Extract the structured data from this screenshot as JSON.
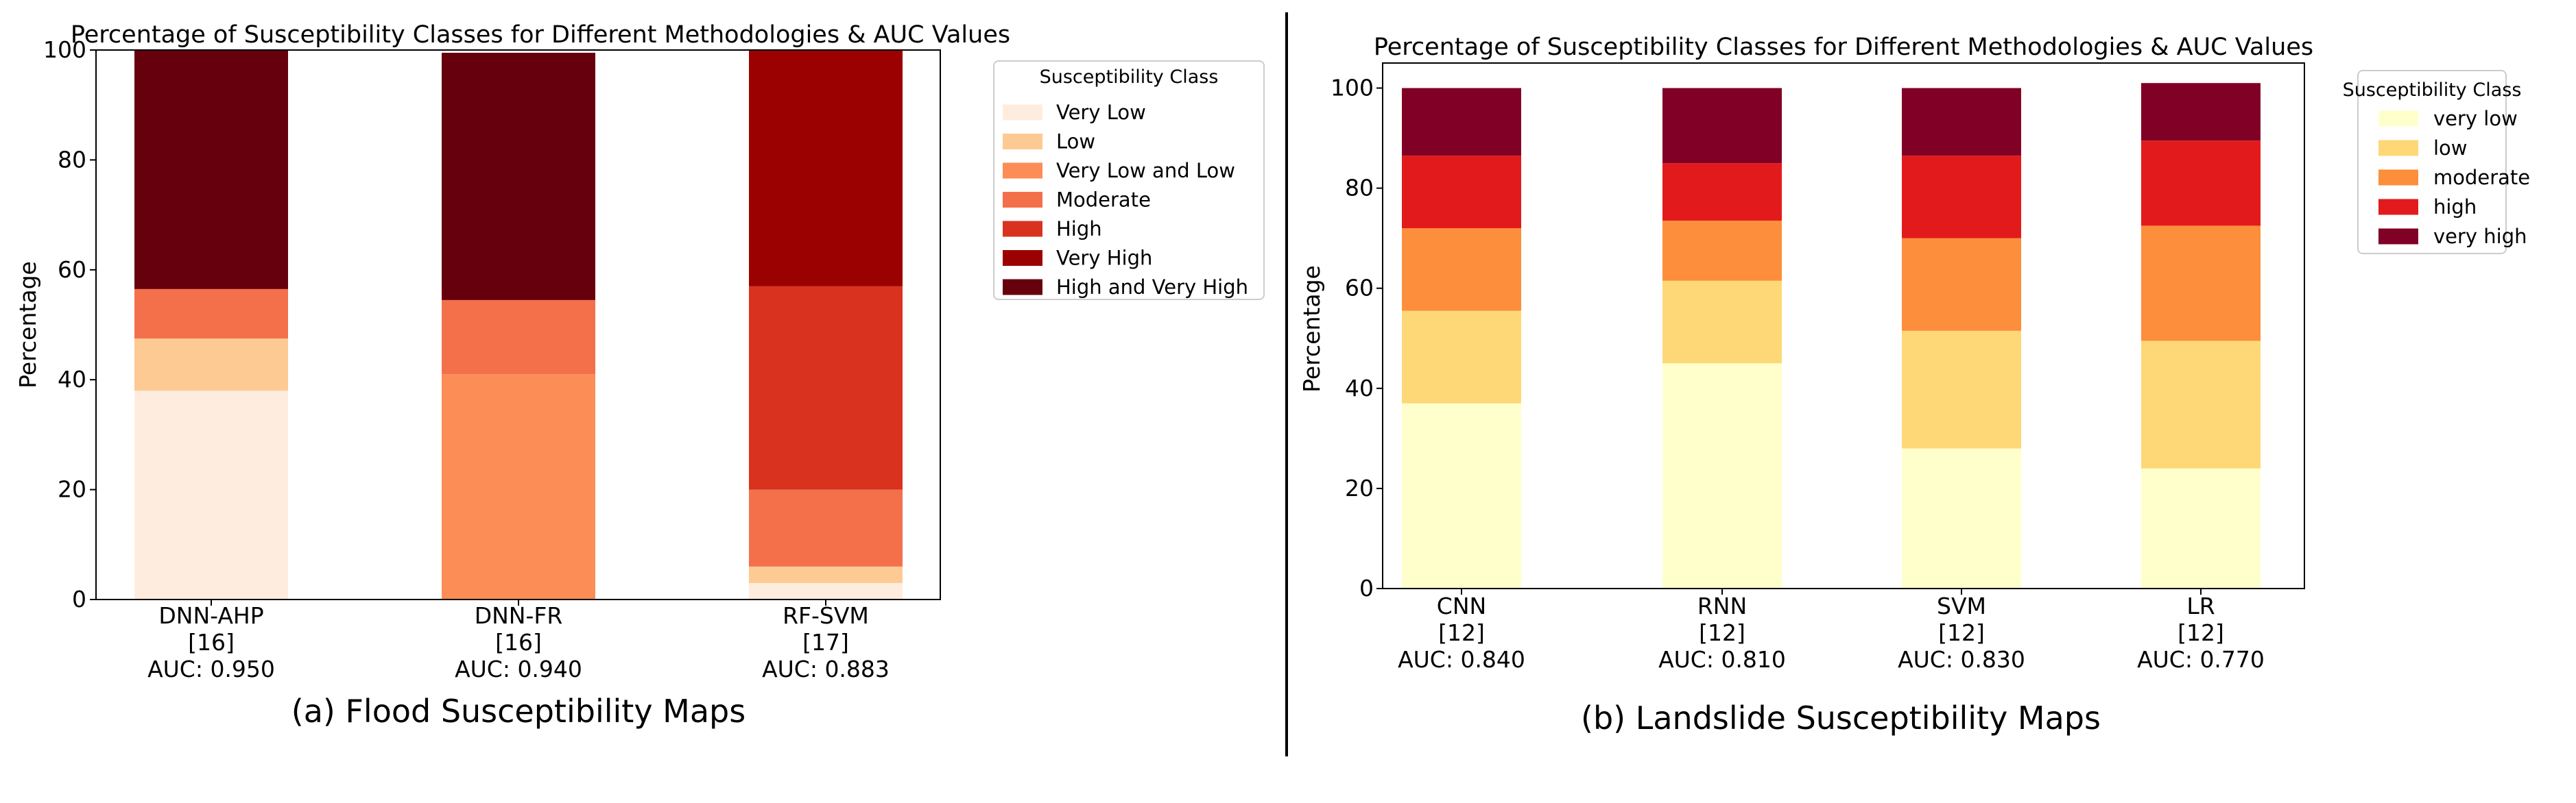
{
  "divider_color": "#000000",
  "panels": [
    {
      "caption": "(a) Flood Susceptibility Maps",
      "chart_data": {
        "type": "bar",
        "stacked": true,
        "title": "Percentage of Susceptibility Classes for Different Methodologies & AUC Values",
        "xlabel": "",
        "ylabel": "Percentage",
        "ylim": [
          0,
          100
        ],
        "yticks": [
          0,
          20,
          40,
          60,
          80,
          100
        ],
        "categories": [
          {
            "name": "DNN-AHP",
            "ref": "[16]",
            "auc": "AUC: 0.950"
          },
          {
            "name": "DNN-FR",
            "ref": "[16]",
            "auc": "AUC: 0.940"
          },
          {
            "name": "RF-SVM",
            "ref": "[17]",
            "auc": "AUC: 0.883"
          }
        ],
        "legend_title": "Susceptibility Class",
        "legend_position": "right",
        "series": [
          {
            "name": "Very Low",
            "color": "#feedde",
            "values": [
              38,
              0,
              3
            ]
          },
          {
            "name": "Low",
            "color": "#fdca93",
            "values": [
              9.5,
              0,
              3
            ]
          },
          {
            "name": "Very Low and Low",
            "color": "#fd8d56",
            "values": [
              0,
              41,
              0
            ]
          },
          {
            "name": "Moderate",
            "color": "#f3704b",
            "values": [
              9,
              13.5,
              14
            ]
          },
          {
            "name": "High",
            "color": "#d9321f",
            "values": [
              0,
              0,
              37
            ]
          },
          {
            "name": "Very High",
            "color": "#9b0101",
            "values": [
              0,
              0,
              43
            ]
          },
          {
            "name": "High and Very High",
            "color": "#67000d",
            "values": [
              43.5,
              45,
              0
            ]
          }
        ]
      }
    },
    {
      "caption": "(b) Landslide Susceptibility Maps",
      "chart_data": {
        "type": "bar",
        "stacked": true,
        "title": "Percentage of Susceptibility Classes for Different Methodologies & AUC Values",
        "xlabel": "",
        "ylabel": "Percentage",
        "ylim": [
          0,
          105
        ],
        "yticks": [
          0,
          20,
          40,
          60,
          80,
          100
        ],
        "categories": [
          {
            "name": "CNN",
            "ref": "[12]",
            "auc": "AUC: 0.840"
          },
          {
            "name": "RNN",
            "ref": "[12]",
            "auc": "AUC: 0.810"
          },
          {
            "name": "SVM",
            "ref": "[12]",
            "auc": "AUC: 0.830"
          },
          {
            "name": "LR",
            "ref": "[12]",
            "auc": "AUC: 0.770"
          }
        ],
        "legend_title": "Susceptibility Class",
        "legend_position": "right",
        "series": [
          {
            "name": "very low",
            "color": "#ffffcc",
            "values": [
              37,
              45,
              28,
              24
            ]
          },
          {
            "name": "low",
            "color": "#fed877",
            "values": [
              18.5,
              16.5,
              23.5,
              25.5
            ]
          },
          {
            "name": "moderate",
            "color": "#fc8e3c",
            "values": [
              16.5,
              12,
              18.5,
              23
            ]
          },
          {
            "name": "high",
            "color": "#e31a1c",
            "values": [
              14.5,
              11.5,
              16.5,
              17
            ]
          },
          {
            "name": "very high",
            "color": "#800026",
            "values": [
              13.5,
              15,
              13.5,
              11.5
            ]
          }
        ]
      }
    }
  ]
}
